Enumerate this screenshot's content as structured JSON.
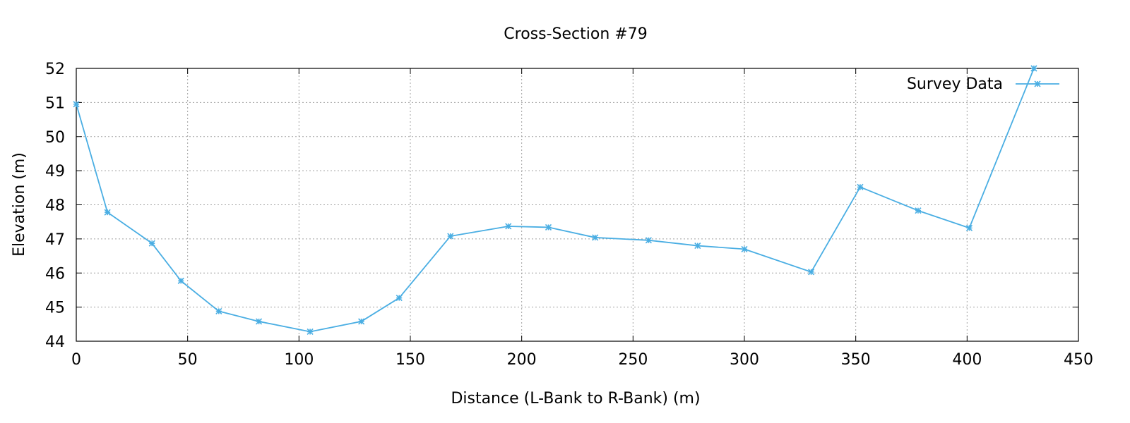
{
  "chart_data": {
    "type": "line",
    "title": "Cross-Section #79",
    "xlabel": "Distance (L-Bank to R-Bank) (m)",
    "ylabel": "Elevation (m)",
    "xlim": [
      0,
      450
    ],
    "ylim": [
      44,
      52
    ],
    "xticks": [
      0,
      50,
      100,
      150,
      200,
      250,
      300,
      350,
      400,
      450
    ],
    "yticks": [
      44,
      45,
      46,
      47,
      48,
      49,
      50,
      51,
      52
    ],
    "grid": true,
    "legend_position": "top-right",
    "series": [
      {
        "name": "Survey Data",
        "color": "#4aaee3",
        "marker": "asterisk",
        "x": [
          0,
          14,
          34,
          47,
          64,
          82,
          105,
          128,
          145,
          168,
          194,
          212,
          233,
          257,
          279,
          300,
          330,
          352,
          378,
          401,
          430
        ],
        "y": [
          50.95,
          47.78,
          46.87,
          45.77,
          44.88,
          44.58,
          44.28,
          44.58,
          45.27,
          47.08,
          47.37,
          47.34,
          47.04,
          46.96,
          46.8,
          46.7,
          46.03,
          48.52,
          47.83,
          47.32,
          52.0
        ]
      }
    ]
  }
}
